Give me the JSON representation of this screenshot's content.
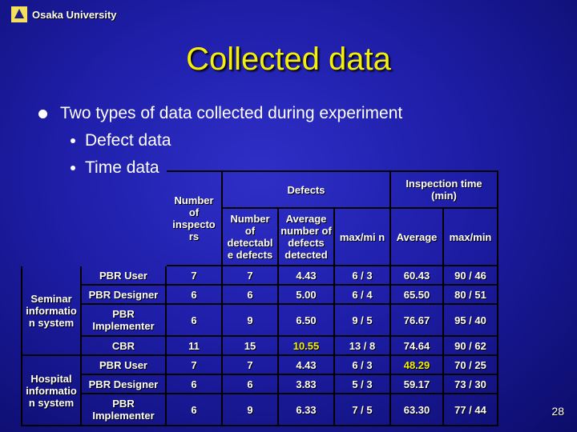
{
  "header": {
    "logo_text": "Osaka University"
  },
  "slide": {
    "title": "Collected data",
    "bullet": "Two types of data collected during experiment",
    "subbullets": [
      "Defect data",
      "Time data"
    ],
    "page_number": "28"
  },
  "table": {
    "headers": {
      "num_inspectors": "Number of inspecto rs",
      "defects_group": "Defects",
      "time_group": "Inspection time (min)",
      "num_detectable": "Number of detectabl e defects",
      "avg_detected": "Average number of defects detected",
      "maxmin_defects": "max/mi n",
      "avg_time": "Average",
      "maxmin_time": "max/min"
    },
    "systems": [
      {
        "name": "Seminar informatio n system",
        "rows": [
          {
            "method": "PBR User",
            "inspectors": "7",
            "detectable": "7",
            "avg": "4.43",
            "maxmin": "6 / 3",
            "time_avg": "60.43",
            "time_maxmin": "90 / 46"
          },
          {
            "method": "PBR Designer",
            "inspectors": "6",
            "detectable": "6",
            "avg": "5.00",
            "maxmin": "6 / 4",
            "time_avg": "65.50",
            "time_maxmin": "80 / 51"
          },
          {
            "method": "PBR Implementer",
            "inspectors": "6",
            "detectable": "9",
            "avg": "6.50",
            "maxmin": "9 / 5",
            "time_avg": "76.67",
            "time_maxmin": "95 / 40"
          },
          {
            "method": "CBR",
            "inspectors": "11",
            "detectable": "15",
            "avg": "10.55",
            "maxmin": "13 / 8",
            "time_avg": "74.64",
            "time_maxmin": "90 / 62"
          }
        ]
      },
      {
        "name": "Hospital informatio n system",
        "rows": [
          {
            "method": "PBR User",
            "inspectors": "7",
            "detectable": "7",
            "avg": "4.43",
            "maxmin": "6 / 3",
            "time_avg": "48.29",
            "time_maxmin": "70 / 25"
          },
          {
            "method": "PBR Designer",
            "inspectors": "6",
            "detectable": "6",
            "avg": "3.83",
            "maxmin": "5 / 3",
            "time_avg": "59.17",
            "time_maxmin": "73 / 30"
          },
          {
            "method": "PBR Implementer",
            "inspectors": "6",
            "detectable": "9",
            "avg": "6.33",
            "maxmin": "7 / 5",
            "time_avg": "63.30",
            "time_maxmin": "77 / 44"
          }
        ]
      }
    ]
  },
  "colors": {
    "title": "#f4f00a",
    "background": "#1e1ea8",
    "highlight": "#f4f00a"
  }
}
